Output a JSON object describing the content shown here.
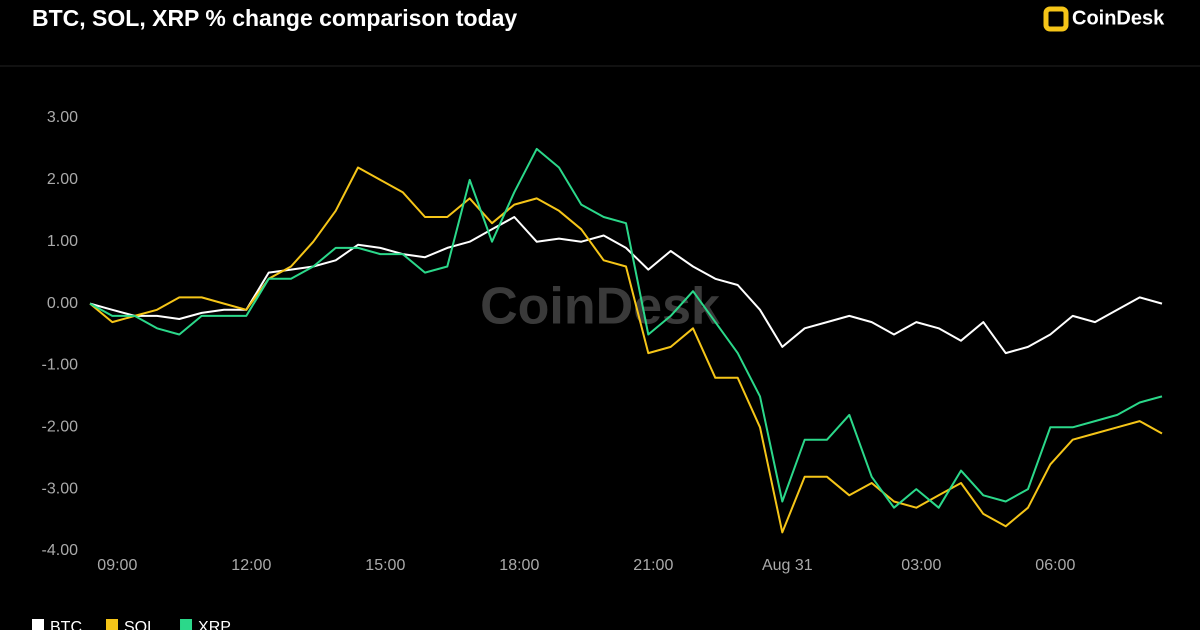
{
  "chart_data": {
    "type": "line",
    "title": "BTC, SOL, XRP % change comparison today",
    "logo": "CoinDesk",
    "watermark": "CoinDesk",
    "categories": [
      null,
      "09:00",
      null,
      null,
      null,
      null,
      null,
      "12:00",
      null,
      null,
      null,
      null,
      null,
      "15:00",
      null,
      null,
      null,
      null,
      null,
      "18:00",
      null,
      null,
      null,
      null,
      null,
      "21:00",
      null,
      null,
      null,
      null,
      null,
      "Aug 31",
      null,
      null,
      null,
      null,
      null,
      "03:00",
      null,
      null,
      null,
      null,
      null,
      "06:00",
      null,
      null,
      null,
      null,
      null
    ],
    "series": [
      {
        "name": "BTC",
        "color": "#ffffff",
        "values": [
          0,
          -0.1,
          -0.2,
          -0.2,
          -0.25,
          -0.15,
          -0.1,
          -0.1,
          0.5,
          0.55,
          0.6,
          0.7,
          0.95,
          0.9,
          0.8,
          0.75,
          0.9,
          1.0,
          1.2,
          1.4,
          1.0,
          1.05,
          1.0,
          1.1,
          0.9,
          0.55,
          0.85,
          0.6,
          0.4,
          0.3,
          -0.1,
          -0.7,
          -0.4,
          -0.3,
          -0.2,
          -0.3,
          -0.5,
          -0.3,
          -0.4,
          -0.6,
          -0.3,
          -0.8,
          -0.7,
          -0.5,
          -0.2,
          -0.3,
          -0.1,
          0.1,
          0.0
        ]
      },
      {
        "name": "SOL",
        "color": "#f5c518",
        "values": [
          0,
          -0.3,
          -0.2,
          -0.1,
          0.1,
          0.1,
          0.0,
          -0.1,
          0.4,
          0.6,
          1.0,
          1.5,
          2.2,
          2.0,
          1.8,
          1.4,
          1.4,
          1.7,
          1.3,
          1.6,
          1.7,
          1.5,
          1.2,
          0.7,
          0.6,
          -0.8,
          -0.7,
          -0.4,
          -1.2,
          -1.2,
          -2.0,
          -3.7,
          -2.8,
          -2.8,
          -3.1,
          -2.9,
          -3.2,
          -3.3,
          -3.1,
          -2.9,
          -3.4,
          -3.6,
          -3.3,
          -2.6,
          -2.2,
          -2.1,
          -2.0,
          -1.9,
          -2.1
        ]
      },
      {
        "name": "XRP",
        "color": "#2bd88a",
        "values": [
          0,
          -0.2,
          -0.2,
          -0.4,
          -0.5,
          -0.2,
          -0.2,
          -0.2,
          0.4,
          0.4,
          0.6,
          0.9,
          0.9,
          0.8,
          0.8,
          0.5,
          0.6,
          2.0,
          1.0,
          1.8,
          2.5,
          2.2,
          1.6,
          1.4,
          1.3,
          -0.5,
          -0.2,
          0.2,
          -0.3,
          -0.8,
          -1.5,
          -3.2,
          -2.2,
          -2.2,
          -1.8,
          -2.8,
          -3.3,
          -3.0,
          -3.3,
          -2.7,
          -3.1,
          -3.2,
          -3.0,
          -2.0,
          -2.0,
          -1.9,
          -1.8,
          -1.6,
          -1.5
        ]
      }
    ],
    "ylim": [
      -4,
      3
    ],
    "yticks": [
      {
        "value": 3,
        "label": "3.00"
      },
      {
        "value": 2,
        "label": "2.00"
      },
      {
        "value": 1,
        "label": "1.00"
      },
      {
        "value": 0,
        "label": "0.00"
      },
      {
        "value": -1,
        "label": "-1.00"
      },
      {
        "value": -2,
        "label": "-2.00"
      },
      {
        "value": -3,
        "label": "-3.00"
      },
      {
        "value": -4,
        "label": "-4.00"
      }
    ]
  }
}
